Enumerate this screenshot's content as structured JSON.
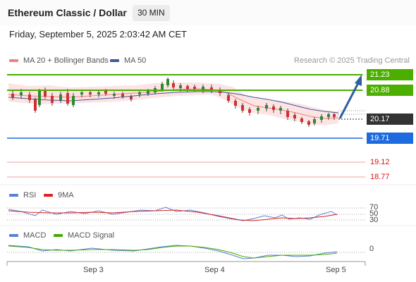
{
  "header": {
    "title": "Ethereum Classic / Dollar",
    "timeframe": "30 MIN",
    "datetime": "Friday, September 5, 2025 2:03:42 AM CET"
  },
  "legend": {
    "ma20": "MA 20 + Bollinger Bands",
    "ma50": "MA 50",
    "credit": "Research © 2025 Trading Central",
    "colors": {
      "ma20": "#f08080",
      "ma50": "#3c5a99"
    }
  },
  "levels": {
    "resistance2": "21.23",
    "resistance1": "20.88",
    "current": "20.17",
    "pivot": "19.71",
    "support1": "19.12",
    "support2": "18.77",
    "colors": {
      "resistance": "#4caf00",
      "current": "#333333",
      "pivot": "#1e6be0",
      "support": "#e05050"
    }
  },
  "rsi": {
    "label": "RSI",
    "ma_label": "9MA",
    "levels": [
      "70",
      "50",
      "30"
    ],
    "colors": {
      "rsi": "#5b7fd6",
      "ma": "#e02020"
    }
  },
  "macd": {
    "label": "MACD",
    "signal_label": "MACD Signal",
    "zero": "0",
    "colors": {
      "macd": "#5b7fd6",
      "signal": "#44aa00"
    }
  },
  "xaxis": {
    "labels": [
      "Sep 3",
      "Sep 4",
      "Sep 5"
    ]
  }
}
